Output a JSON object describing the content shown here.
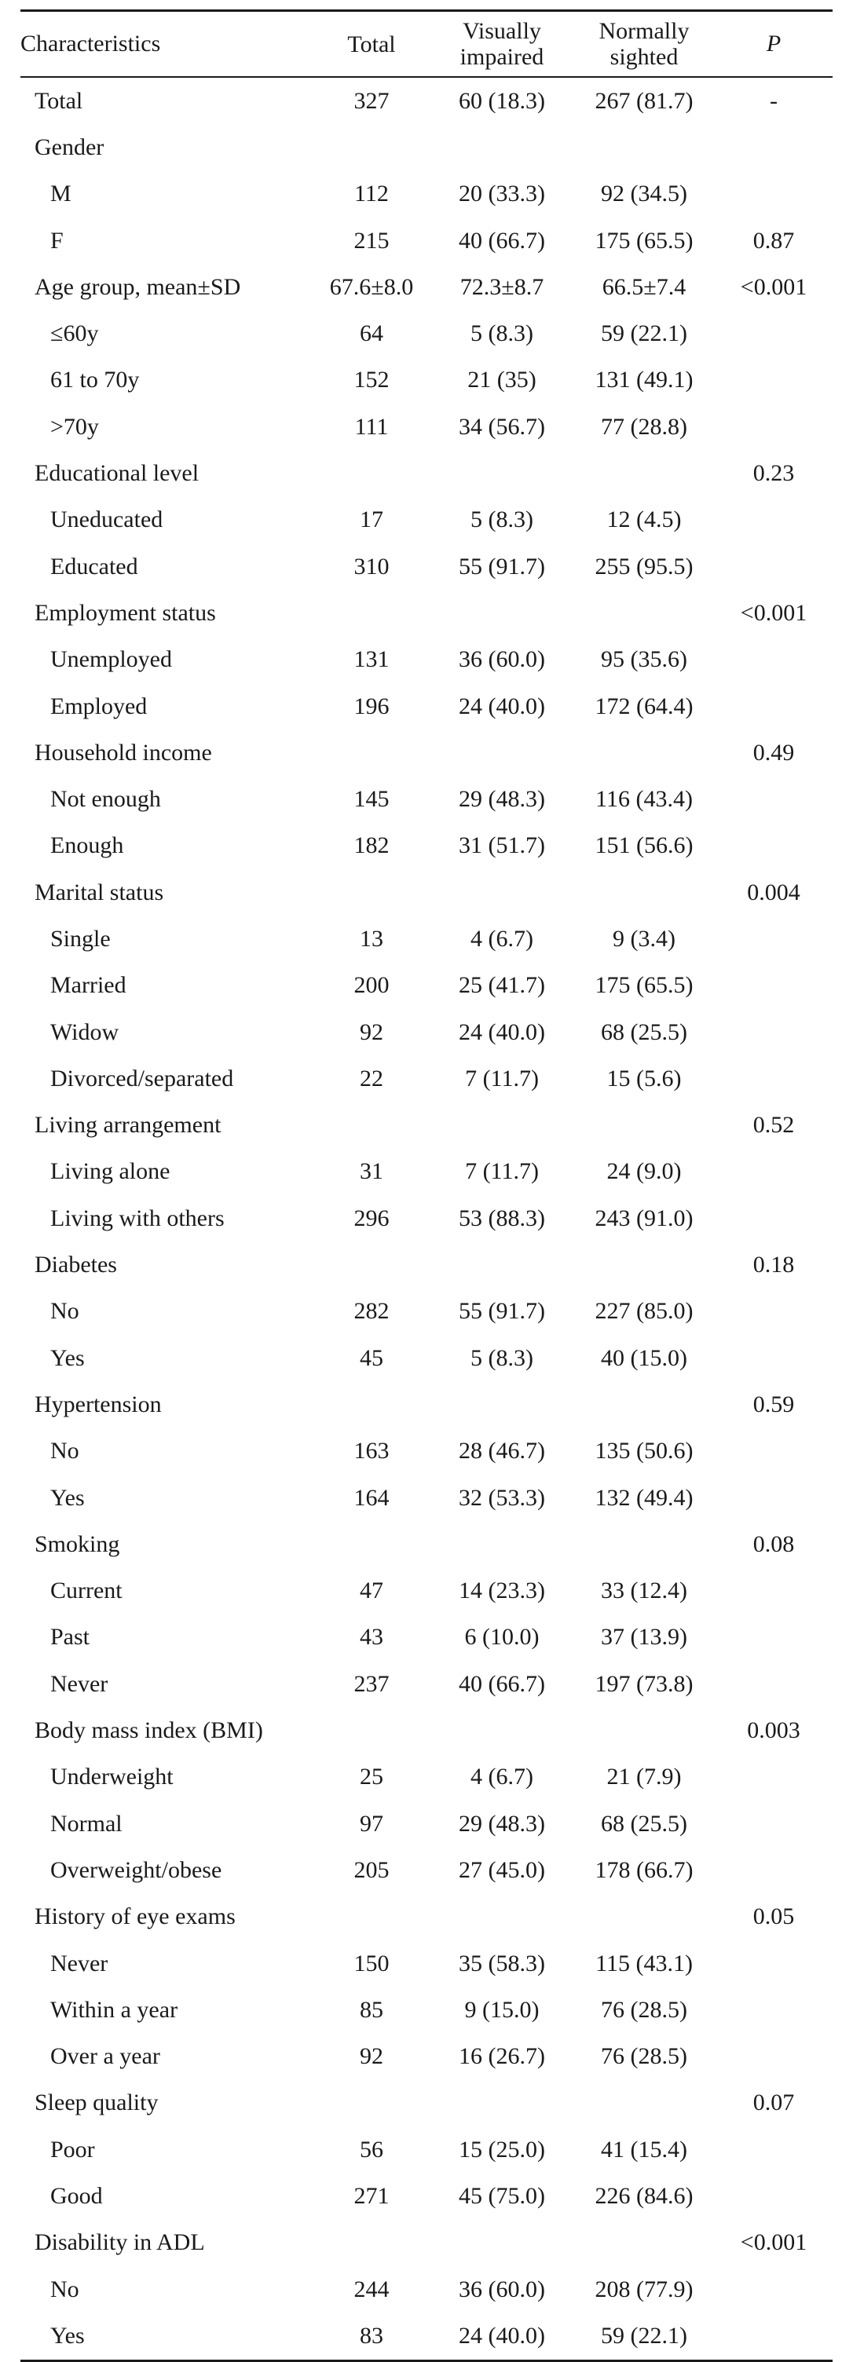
{
  "table": {
    "headers": {
      "characteristics": "Characteristics",
      "total": "Total",
      "visually_impaired_line1": "Visually",
      "visually_impaired_line2": "impaired",
      "normally_sighted_line1": "Normally",
      "normally_sighted_line2": "sighted",
      "p": "P"
    },
    "rows": [
      {
        "label": "Total",
        "indent": false,
        "total": "327",
        "visually_impaired": "60 (18.3)",
        "normally_sighted": "267 (81.7)",
        "p": "-"
      },
      {
        "label": "Gender",
        "indent": false,
        "total": "",
        "visually_impaired": "",
        "normally_sighted": "",
        "p": ""
      },
      {
        "label": "M",
        "indent": true,
        "total": "112",
        "visually_impaired": "20 (33.3)",
        "normally_sighted": "92 (34.5)",
        "p": ""
      },
      {
        "label": "F",
        "indent": true,
        "total": "215",
        "visually_impaired": "40 (66.7)",
        "normally_sighted": "175 (65.5)",
        "p": "0.87"
      },
      {
        "label": "Age group, mean±SD",
        "indent": false,
        "total": "67.6±8.0",
        "visually_impaired": "72.3±8.7",
        "normally_sighted": "66.5±7.4",
        "p": "<0.001"
      },
      {
        "label": "≤60y",
        "indent": true,
        "total": "64",
        "visually_impaired": "5 (8.3)",
        "normally_sighted": "59 (22.1)",
        "p": ""
      },
      {
        "label": "61 to 70y",
        "indent": true,
        "total": "152",
        "visually_impaired": "21 (35)",
        "normally_sighted": "131 (49.1)",
        "p": ""
      },
      {
        "label": ">70y",
        "indent": true,
        "total": "111",
        "visually_impaired": "34 (56.7)",
        "normally_sighted": "77 (28.8)",
        "p": ""
      },
      {
        "label": "Educational level",
        "indent": false,
        "total": "",
        "visually_impaired": "",
        "normally_sighted": "",
        "p": "0.23"
      },
      {
        "label": "Uneducated",
        "indent": true,
        "total": "17",
        "visually_impaired": "5 (8.3)",
        "normally_sighted": "12 (4.5)",
        "p": ""
      },
      {
        "label": "Educated",
        "indent": true,
        "total": "310",
        "visually_impaired": "55 (91.7)",
        "normally_sighted": "255 (95.5)",
        "p": ""
      },
      {
        "label": "Employment status",
        "indent": false,
        "total": "",
        "visually_impaired": "",
        "normally_sighted": "",
        "p": "<0.001"
      },
      {
        "label": "Unemployed",
        "indent": true,
        "total": "131",
        "visually_impaired": "36 (60.0)",
        "normally_sighted": "95 (35.6)",
        "p": ""
      },
      {
        "label": "Employed",
        "indent": true,
        "total": "196",
        "visually_impaired": "24 (40.0)",
        "normally_sighted": "172 (64.4)",
        "p": ""
      },
      {
        "label": "Household income",
        "indent": false,
        "total": "",
        "visually_impaired": "",
        "normally_sighted": "",
        "p": "0.49"
      },
      {
        "label": "Not enough",
        "indent": true,
        "total": "145",
        "visually_impaired": "29 (48.3)",
        "normally_sighted": "116 (43.4)",
        "p": ""
      },
      {
        "label": "Enough",
        "indent": true,
        "total": "182",
        "visually_impaired": "31 (51.7)",
        "normally_sighted": "151 (56.6)",
        "p": ""
      },
      {
        "label": "Marital status",
        "indent": false,
        "total": "",
        "visually_impaired": "",
        "normally_sighted": "",
        "p": "0.004"
      },
      {
        "label": "Single",
        "indent": true,
        "total": "13",
        "visually_impaired": "4 (6.7)",
        "normally_sighted": "9 (3.4)",
        "p": ""
      },
      {
        "label": "Married",
        "indent": true,
        "total": "200",
        "visually_impaired": "25 (41.7)",
        "normally_sighted": "175 (65.5)",
        "p": ""
      },
      {
        "label": "Widow",
        "indent": true,
        "total": "92",
        "visually_impaired": "24 (40.0)",
        "normally_sighted": "68 (25.5)",
        "p": ""
      },
      {
        "label": "Divorced/separated",
        "indent": true,
        "total": "22",
        "visually_impaired": "7 (11.7)",
        "normally_sighted": "15 (5.6)",
        "p": ""
      },
      {
        "label": "Living arrangement",
        "indent": false,
        "total": "",
        "visually_impaired": "",
        "normally_sighted": "",
        "p": "0.52"
      },
      {
        "label": "Living alone",
        "indent": true,
        "total": "31",
        "visually_impaired": "7 (11.7)",
        "normally_sighted": "24 (9.0)",
        "p": ""
      },
      {
        "label": "Living with others",
        "indent": true,
        "total": "296",
        "visually_impaired": "53 (88.3)",
        "normally_sighted": "243 (91.0)",
        "p": ""
      },
      {
        "label": "Diabetes",
        "indent": false,
        "total": "",
        "visually_impaired": "",
        "normally_sighted": "",
        "p": "0.18"
      },
      {
        "label": "No",
        "indent": true,
        "total": "282",
        "visually_impaired": "55 (91.7)",
        "normally_sighted": "227 (85.0)",
        "p": ""
      },
      {
        "label": "Yes",
        "indent": true,
        "total": "45",
        "visually_impaired": "5 (8.3)",
        "normally_sighted": "40 (15.0)",
        "p": ""
      },
      {
        "label": "Hypertension",
        "indent": false,
        "total": "",
        "visually_impaired": "",
        "normally_sighted": "",
        "p": "0.59"
      },
      {
        "label": "No",
        "indent": true,
        "total": "163",
        "visually_impaired": "28 (46.7)",
        "normally_sighted": "135 (50.6)",
        "p": ""
      },
      {
        "label": "Yes",
        "indent": true,
        "total": "164",
        "visually_impaired": "32 (53.3)",
        "normally_sighted": "132 (49.4)",
        "p": ""
      },
      {
        "label": "Smoking",
        "indent": false,
        "total": "",
        "visually_impaired": "",
        "normally_sighted": "",
        "p": "0.08"
      },
      {
        "label": "Current",
        "indent": true,
        "total": "47",
        "visually_impaired": "14 (23.3)",
        "normally_sighted": "33 (12.4)",
        "p": ""
      },
      {
        "label": "Past",
        "indent": true,
        "total": "43",
        "visually_impaired": "6 (10.0)",
        "normally_sighted": "37 (13.9)",
        "p": ""
      },
      {
        "label": "Never",
        "indent": true,
        "total": "237",
        "visually_impaired": "40 (66.7)",
        "normally_sighted": "197 (73.8)",
        "p": ""
      },
      {
        "label": "Body mass index (BMI)",
        "indent": false,
        "total": "",
        "visually_impaired": "",
        "normally_sighted": "",
        "p": "0.003"
      },
      {
        "label": "Underweight",
        "indent": true,
        "total": "25",
        "visually_impaired": "4 (6.7)",
        "normally_sighted": "21 (7.9)",
        "p": ""
      },
      {
        "label": "Normal",
        "indent": true,
        "total": "97",
        "visually_impaired": "29 (48.3)",
        "normally_sighted": "68 (25.5)",
        "p": ""
      },
      {
        "label": "Overweight/obese",
        "indent": true,
        "total": "205",
        "visually_impaired": "27 (45.0)",
        "normally_sighted": "178 (66.7)",
        "p": ""
      },
      {
        "label": "History of eye exams",
        "indent": false,
        "total": "",
        "visually_impaired": "",
        "normally_sighted": "",
        "p": "0.05"
      },
      {
        "label": "Never",
        "indent": true,
        "total": "150",
        "visually_impaired": "35 (58.3)",
        "normally_sighted": "115 (43.1)",
        "p": ""
      },
      {
        "label": "Within a year",
        "indent": true,
        "total": "85",
        "visually_impaired": "9 (15.0)",
        "normally_sighted": "76 (28.5)",
        "p": ""
      },
      {
        "label": "Over a year",
        "indent": true,
        "total": "92",
        "visually_impaired": "16 (26.7)",
        "normally_sighted": "76 (28.5)",
        "p": ""
      },
      {
        "label": "Sleep quality",
        "indent": false,
        "total": "",
        "visually_impaired": "",
        "normally_sighted": "",
        "p": "0.07"
      },
      {
        "label": "Poor",
        "indent": true,
        "total": "56",
        "visually_impaired": "15 (25.0)",
        "normally_sighted": "41 (15.4)",
        "p": ""
      },
      {
        "label": "Good",
        "indent": true,
        "total": "271",
        "visually_impaired": "45 (75.0)",
        "normally_sighted": "226 (84.6)",
        "p": ""
      },
      {
        "label": "Disability in ADL",
        "indent": false,
        "total": "",
        "visually_impaired": "",
        "normally_sighted": "",
        "p": "<0.001"
      },
      {
        "label": "No",
        "indent": true,
        "total": "244",
        "visually_impaired": "36 (60.0)",
        "normally_sighted": "208 (77.9)",
        "p": ""
      },
      {
        "label": "Yes",
        "indent": true,
        "total": "83",
        "visually_impaired": "24 (40.0)",
        "normally_sighted": "59 (22.1)",
        "p": ""
      }
    ]
  }
}
